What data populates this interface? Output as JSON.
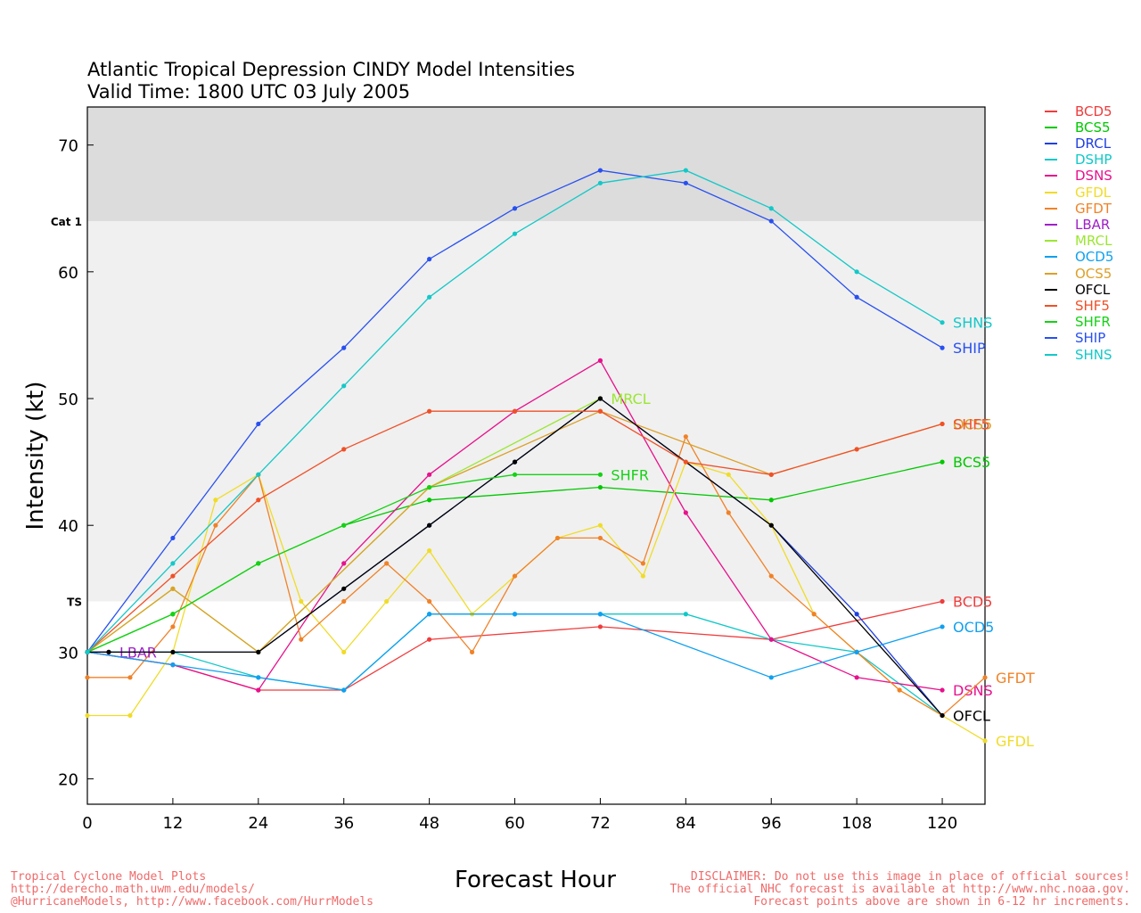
{
  "header": {
    "title_line1": "Atlantic Tropical Depression CINDY Model Intensities",
    "title_line2": "Valid Time: 1800 UTC 03 July 2005"
  },
  "footer": {
    "left": "Tropical Cyclone Model Plots\nhttp://derecho.math.uwm.edu/models/\n@HurricaneModels, http://www.facebook.com/HurrModels",
    "right": "DISCLAIMER: Do not use this image in place of official sources!\nThe official NHC forecast is available at http://www.nhc.noaa.gov.\nForecast points above are shown in 6-12 hr increments."
  },
  "chart_data": {
    "type": "line",
    "title": "Atlantic Tropical Depression CINDY Model Intensities",
    "subtitle": "Valid Time: 1800 UTC 03 July 2005",
    "xlabel": "Forecast Hour",
    "ylabel": "Intensity (kt)",
    "xlim": [
      0,
      126
    ],
    "ylim": [
      18,
      73
    ],
    "x_ticks": [
      0,
      12,
      24,
      36,
      48,
      60,
      72,
      84,
      96,
      108,
      120
    ],
    "y_ticks": [
      20,
      30,
      40,
      50,
      60,
      70
    ],
    "thresholds": [
      {
        "label": "TS",
        "value": 34,
        "color": "#f0f0f0"
      },
      {
        "label": "Cat 1",
        "value": 64,
        "color": "#dcdcdc"
      }
    ],
    "legend_position": "right",
    "series": [
      {
        "name": "BCD5",
        "color": "#f03c3c",
        "x": [
          0,
          12,
          24,
          36,
          48,
          72,
          96,
          120
        ],
        "y": [
          30,
          29,
          27,
          27,
          31,
          32,
          31,
          34
        ],
        "end_label": "BCD5"
      },
      {
        "name": "BCS5",
        "color": "#00c800",
        "x": [
          0,
          12,
          24,
          36,
          48,
          72,
          96,
          120
        ],
        "y": [
          30,
          33,
          37,
          40,
          42,
          43,
          42,
          45
        ],
        "end_label": "BCS5"
      },
      {
        "name": "DRCL",
        "color": "#2040e0",
        "x": [
          0,
          24,
          48,
          60,
          72,
          96,
          108,
          120
        ],
        "y": [
          30,
          30,
          40,
          45,
          50,
          40,
          33,
          25
        ],
        "end_label": ""
      },
      {
        "name": "DSHP",
        "color": "#10c8c8",
        "x": [
          0,
          12,
          24,
          36,
          48,
          60,
          72,
          84,
          96,
          108,
          120
        ],
        "y": [
          30,
          30,
          28,
          27,
          33,
          33,
          33,
          33,
          31,
          30,
          25
        ],
        "end_label": ""
      },
      {
        "name": "DSNS",
        "color": "#e8108c",
        "x": [
          0,
          12,
          24,
          36,
          48,
          60,
          72,
          84,
          96,
          108,
          120
        ],
        "y": [
          30,
          29,
          27,
          37,
          44,
          49,
          53,
          41,
          31,
          28,
          27
        ],
        "end_label": "DSNS"
      },
      {
        "name": "GFDL",
        "color": "#f0dc28",
        "x": [
          0,
          6,
          12,
          18,
          24,
          30,
          36,
          42,
          48,
          54,
          60,
          66,
          72,
          78,
          84,
          90,
          96,
          102,
          108,
          114,
          120,
          126
        ],
        "y": [
          25,
          25,
          30,
          42,
          44,
          34,
          30,
          34,
          38,
          33,
          36,
          39,
          40,
          36,
          45,
          44,
          40,
          33,
          30,
          27,
          25,
          23
        ],
        "end_label": "GFDL"
      },
      {
        "name": "GFDT",
        "color": "#f08228",
        "x": [
          0,
          6,
          12,
          18,
          24,
          30,
          36,
          42,
          48,
          54,
          60,
          66,
          72,
          78,
          84,
          90,
          96,
          102,
          108,
          114,
          120,
          126
        ],
        "y": [
          28,
          28,
          32,
          40,
          44,
          31,
          34,
          37,
          34,
          30,
          36,
          39,
          39,
          37,
          47,
          41,
          36,
          33,
          30,
          27,
          25,
          28
        ],
        "end_label": "GFDT"
      },
      {
        "name": "LBAR",
        "color": "#a020c8",
        "x": [
          0,
          3
        ],
        "y": [
          30,
          30
        ],
        "end_label": "LBAR"
      },
      {
        "name": "MRCL",
        "color": "#9be632",
        "x": [
          0,
          12,
          24,
          48,
          72
        ],
        "y": [
          30,
          35,
          30,
          43,
          50
        ],
        "end_label": "MRCL"
      },
      {
        "name": "OCD5",
        "color": "#10a0f0",
        "x": [
          0,
          12,
          24,
          36,
          48,
          60,
          72,
          96,
          108,
          120
        ],
        "y": [
          30,
          29,
          28,
          27,
          33,
          33,
          33,
          28,
          30,
          32
        ],
        "end_label": "OCD5"
      },
      {
        "name": "OCS5",
        "color": "#dca028",
        "x": [
          0,
          12,
          24,
          48,
          72,
          96,
          120
        ],
        "y": [
          30,
          35,
          30,
          43,
          49,
          44,
          48
        ],
        "end_label": "OCS5"
      },
      {
        "name": "OFCL",
        "color": "#000000",
        "x": [
          0,
          3,
          12,
          24,
          36,
          48,
          60,
          72,
          96,
          120
        ],
        "y": [
          30,
          30,
          30,
          30,
          35,
          40,
          45,
          50,
          40,
          25
        ],
        "end_label": "OFCL"
      },
      {
        "name": "SHF5",
        "color": "#f05028",
        "x": [
          0,
          12,
          24,
          36,
          48,
          60,
          72,
          84,
          96,
          108,
          120
        ],
        "y": [
          30,
          36,
          42,
          46,
          49,
          49,
          49,
          45,
          44,
          46,
          48
        ],
        "end_label": "SHF5"
      },
      {
        "name": "SHFR",
        "color": "#14d214",
        "x": [
          0,
          12,
          24,
          36,
          48,
          60,
          72
        ],
        "y": [
          30,
          33,
          37,
          40,
          43,
          44,
          44
        ],
        "end_label": "SHFR"
      },
      {
        "name": "SHIP",
        "color": "#2850f0",
        "x": [
          0,
          12,
          24,
          36,
          48,
          60,
          72,
          84,
          96,
          108,
          120
        ],
        "y": [
          30,
          39,
          48,
          54,
          61,
          65,
          68,
          67,
          64,
          58,
          54
        ],
        "end_label": "SHIP"
      },
      {
        "name": "SHNS",
        "color": "#14c8c8",
        "x": [
          0,
          12,
          24,
          36,
          48,
          60,
          72,
          84,
          96,
          108,
          120
        ],
        "y": [
          30,
          37,
          44,
          51,
          58,
          63,
          67,
          68,
          65,
          60,
          56
        ],
        "end_label": "SHNS"
      }
    ]
  }
}
